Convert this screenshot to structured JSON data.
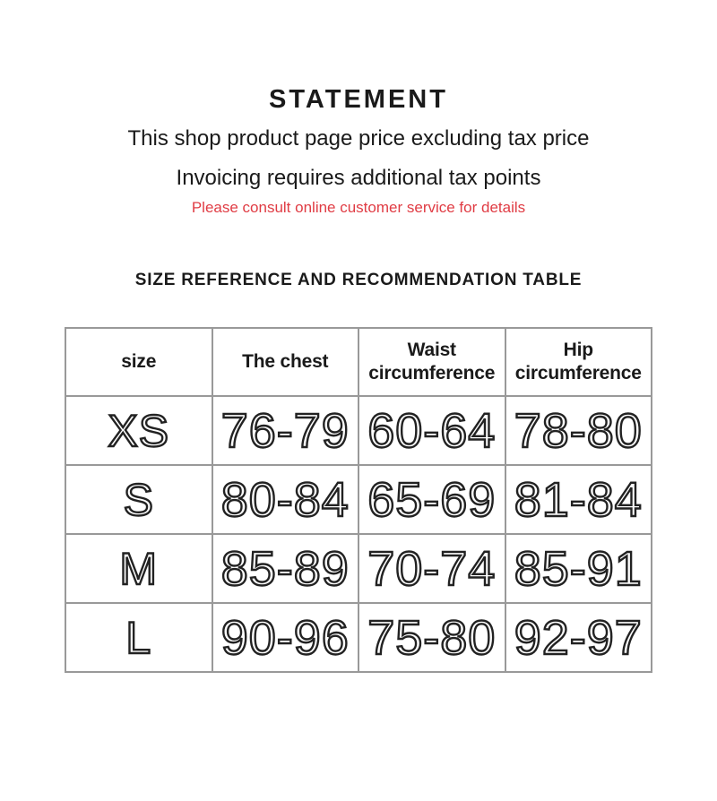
{
  "statement": {
    "title": "STATEMENT",
    "line1": "This shop product page price excluding tax price",
    "line2": "Invoicing requires additional tax points",
    "note": "Please consult online customer service for details"
  },
  "size_table": {
    "heading": "SIZE REFERENCE AND RECOMMENDATION TABLE",
    "columns": [
      "size",
      "The chest",
      "Waist circumference",
      "Hip circumference"
    ],
    "rows": [
      [
        "XS",
        "76-79",
        "60-64",
        "78-80"
      ],
      [
        "S",
        "80-84",
        "65-69",
        "81-84"
      ],
      [
        "M",
        "85-89",
        "70-74",
        "85-91"
      ],
      [
        "L",
        "90-96",
        "75-80",
        "92-97"
      ]
    ]
  },
  "colors": {
    "note_red": "#e03c44",
    "text_black": "#1a1a1a",
    "table_border": "#999999"
  }
}
